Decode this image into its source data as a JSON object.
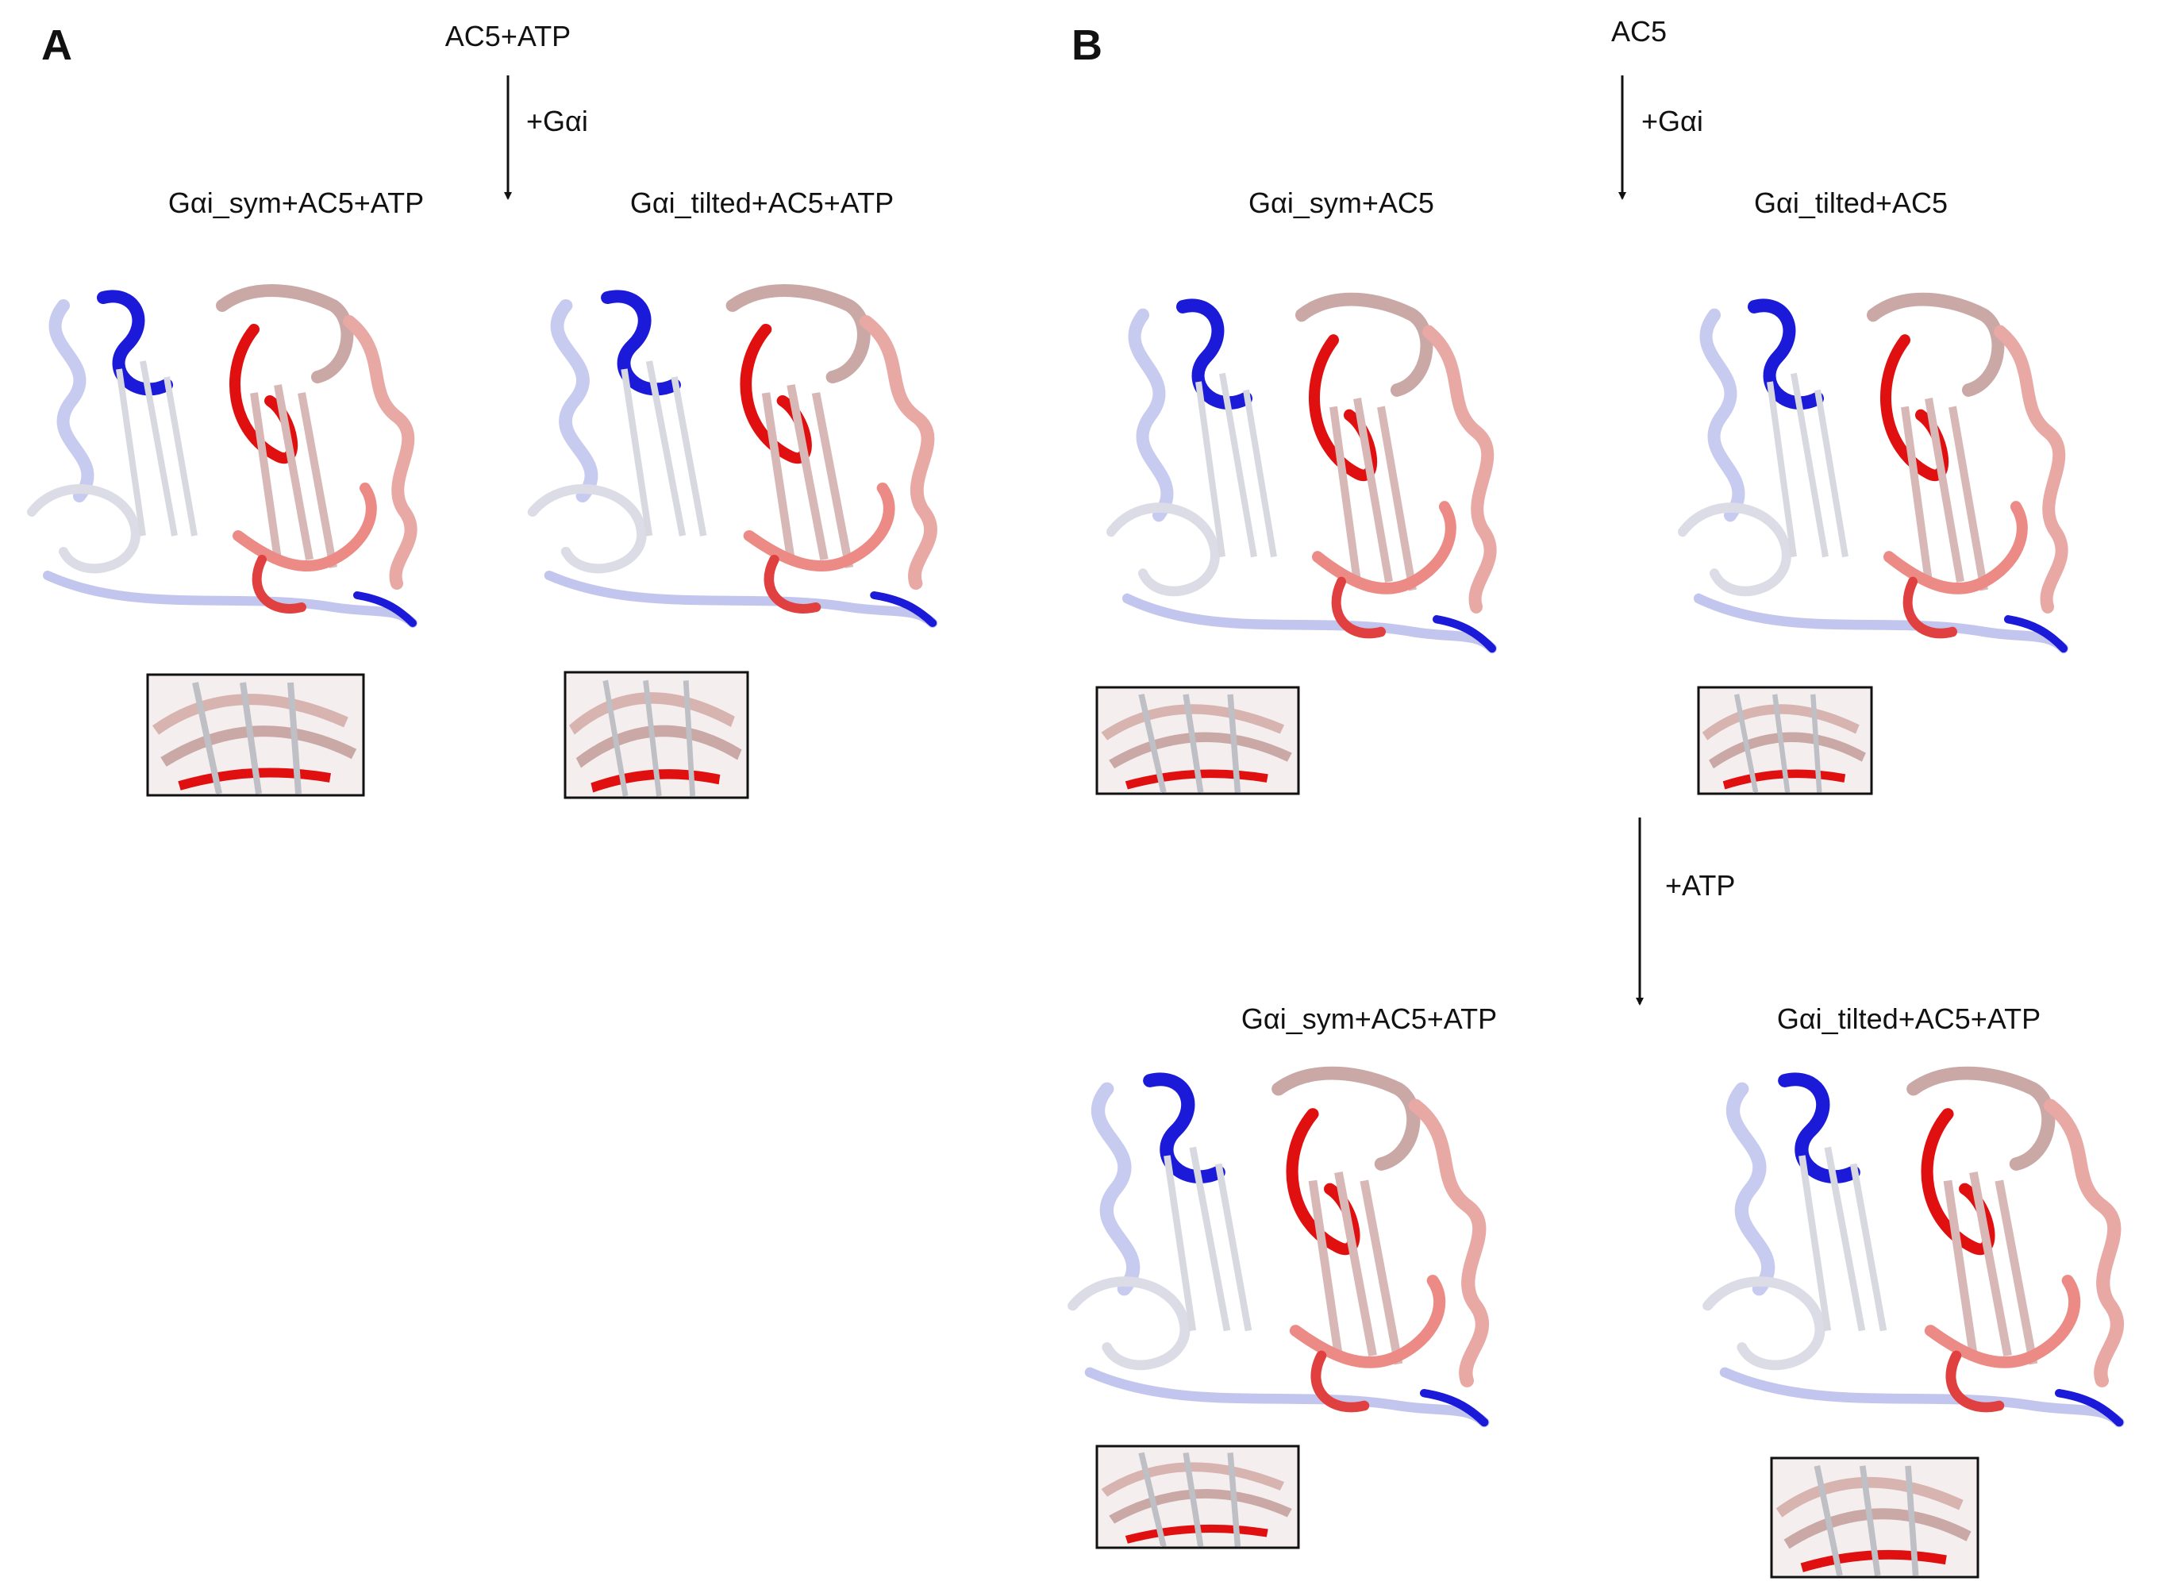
{
  "panels": [
    {
      "letter": "A",
      "start_state": "AC5+ATP",
      "steps": [
        "+Gαi"
      ],
      "structures": [
        {
          "label": "Gαi_sym+AC5+ATP"
        },
        {
          "label": "Gαi_tilted+AC5+ATP"
        }
      ]
    },
    {
      "letter": "B",
      "start_state": "AC5",
      "steps": [
        "+Gαi",
        "+ATP"
      ],
      "structures": [
        {
          "label": "Gαi_sym+AC5"
        },
        {
          "label": "Gαi_tilted+AC5"
        },
        {
          "label": "Gαi_sym+AC5+ATP"
        },
        {
          "label": "Gαi_tilted+AC5+ATP"
        }
      ]
    }
  ],
  "colors": {
    "blue": "#1a1ad8",
    "light_blue": "#aab0ee",
    "white": "#e6e6ea",
    "pink": "#e8a8a4",
    "red": "#e01010",
    "arrow": "#111111"
  }
}
